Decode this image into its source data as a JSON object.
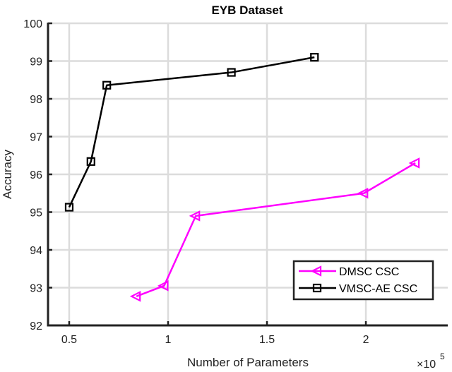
{
  "chart_data": {
    "type": "line",
    "title": "EYB Dataset",
    "xlabel": "Number of Parameters",
    "ylabel": "Accuracy",
    "x_multiplier": "×10^5",
    "x_multiplier_base": "×10",
    "x_multiplier_exp": "5",
    "xlim": [
      0.393,
      2.414
    ],
    "ylim": [
      92,
      100
    ],
    "xticks": [
      0.5,
      1,
      1.5,
      2
    ],
    "xtick_labels": [
      "0.5",
      "1",
      "1.5",
      "2"
    ],
    "yticks": [
      92,
      93,
      94,
      95,
      96,
      97,
      98,
      99,
      100
    ],
    "ytick_labels": [
      "92",
      "93",
      "94",
      "95",
      "96",
      "97",
      "98",
      "99",
      "100"
    ],
    "grid": true,
    "legend_position": "lower right",
    "series": [
      {
        "name": "DMSC CSC",
        "color": "#ff00ff",
        "marker": "triangle-left",
        "x": [
          0.84,
          0.98,
          1.14,
          1.99,
          2.25
        ],
        "values": [
          92.77,
          93.05,
          94.9,
          95.5,
          96.3
        ]
      },
      {
        "name": "VMSC-AE CSC",
        "color": "#000000",
        "marker": "square",
        "x": [
          0.5,
          0.61,
          0.69,
          1.32,
          1.74
        ],
        "values": [
          95.13,
          96.34,
          98.36,
          98.7,
          99.1
        ]
      }
    ]
  }
}
